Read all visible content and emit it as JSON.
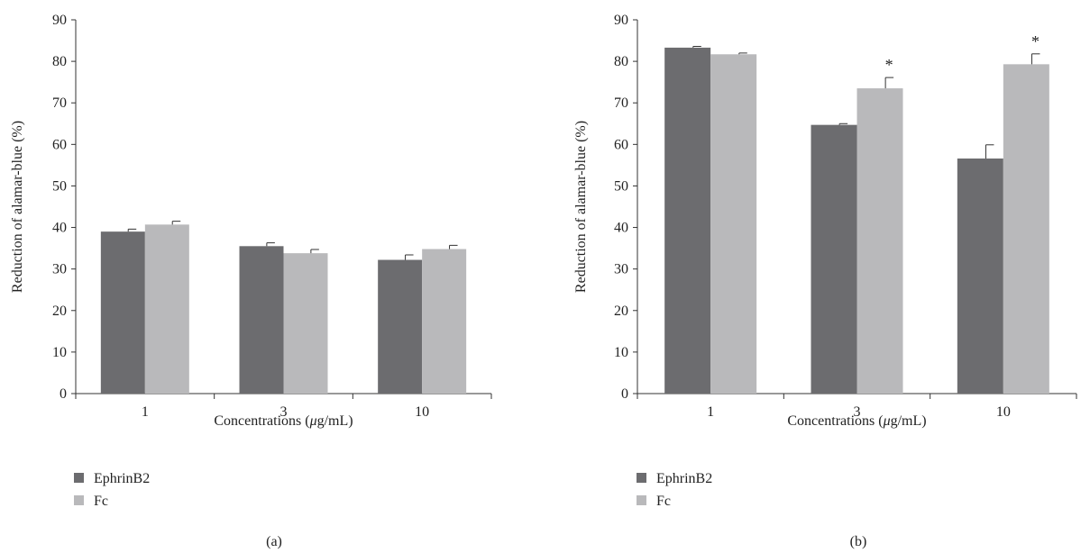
{
  "colors": {
    "EphrinB2": "#6c6c6f",
    "Fc": "#b9b9bb",
    "axis": "#333333"
  },
  "chart_data": [
    {
      "type": "bar",
      "panel_label": "(a)",
      "categories": [
        "1",
        "3",
        "10"
      ],
      "xlabel_parts": [
        "Concentrations (",
        "μ",
        "g/mL)"
      ],
      "ylabel": "Reduction of alamar-blue (%)",
      "ylim": [
        0,
        90
      ],
      "yticks": [
        0,
        10,
        20,
        30,
        40,
        50,
        60,
        70,
        80,
        90
      ],
      "series": [
        {
          "name": "EphrinB2",
          "values": [
            39.0,
            35.5,
            32.2
          ],
          "errors": [
            0.6,
            0.8,
            1.2
          ],
          "significant": [
            false,
            false,
            false
          ]
        },
        {
          "name": "Fc",
          "values": [
            40.7,
            33.8,
            34.8
          ],
          "errors": [
            0.8,
            0.9,
            0.9
          ],
          "significant": [
            false,
            false,
            false
          ]
        }
      ],
      "legend_position": "bottom-left"
    },
    {
      "type": "bar",
      "panel_label": "(b)",
      "categories": [
        "1",
        "3",
        "10"
      ],
      "xlabel_parts": [
        "Concentrations (",
        "μ",
        "g/mL)"
      ],
      "ylabel": "Reduction of alamar-blue (%)",
      "ylim": [
        0,
        90
      ],
      "yticks": [
        0,
        10,
        20,
        30,
        40,
        50,
        60,
        70,
        80,
        90
      ],
      "series": [
        {
          "name": "EphrinB2",
          "values": [
            83.3,
            64.7,
            56.6
          ],
          "errors": [
            0.3,
            0.3,
            3.3
          ],
          "significant": [
            false,
            false,
            false
          ]
        },
        {
          "name": "Fc",
          "values": [
            81.7,
            73.5,
            79.3
          ],
          "errors": [
            0.3,
            2.6,
            2.5
          ],
          "significant": [
            false,
            true,
            true
          ]
        }
      ],
      "significance_marker": "*",
      "legend_position": "bottom-left"
    }
  ]
}
